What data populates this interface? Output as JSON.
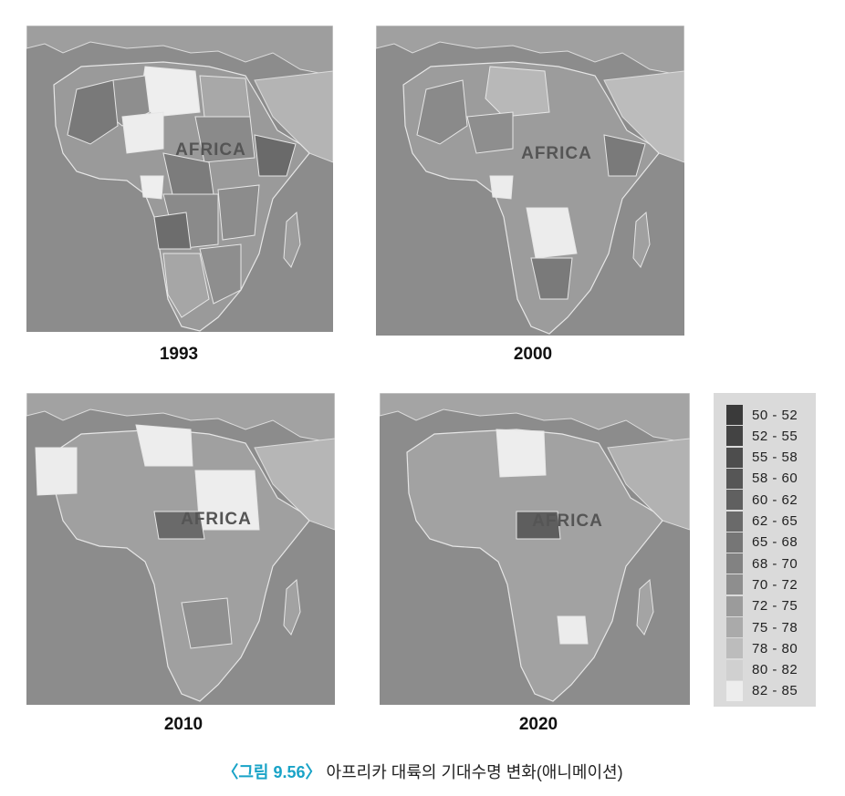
{
  "maps": [
    {
      "year": "1993",
      "label": "AFRICA"
    },
    {
      "year": "2000",
      "label": "AFRICA"
    },
    {
      "year": "2010",
      "label": "AFRICA"
    },
    {
      "year": "2020",
      "label": "AFRICA"
    }
  ],
  "legend": {
    "items": [
      {
        "range": "50 - 52",
        "color": "#3a3a3a"
      },
      {
        "range": "52 - 55",
        "color": "#434343"
      },
      {
        "range": "55 - 58",
        "color": "#4d4d4d"
      },
      {
        "range": "58 - 60",
        "color": "#565656"
      },
      {
        "range": "60 - 62",
        "color": "#606060"
      },
      {
        "range": "62 - 65",
        "color": "#6a6a6a"
      },
      {
        "range": "65 - 68",
        "color": "#767676"
      },
      {
        "range": "68 - 70",
        "color": "#828282"
      },
      {
        "range": "70 - 72",
        "color": "#8e8e8e"
      },
      {
        "range": "72 - 75",
        "color": "#9b9b9b"
      },
      {
        "range": "75 - 78",
        "color": "#aaaaaa"
      },
      {
        "range": "78 - 80",
        "color": "#bcbcbc"
      },
      {
        "range": "80 - 82",
        "color": "#d0d0d0"
      },
      {
        "range": "82 - 85",
        "color": "#ededed"
      }
    ]
  },
  "caption": {
    "figure_label": "〈그림 9.56〉",
    "text": " 아프리카 대륙의 기대수명 변화(애니메이션)"
  }
}
